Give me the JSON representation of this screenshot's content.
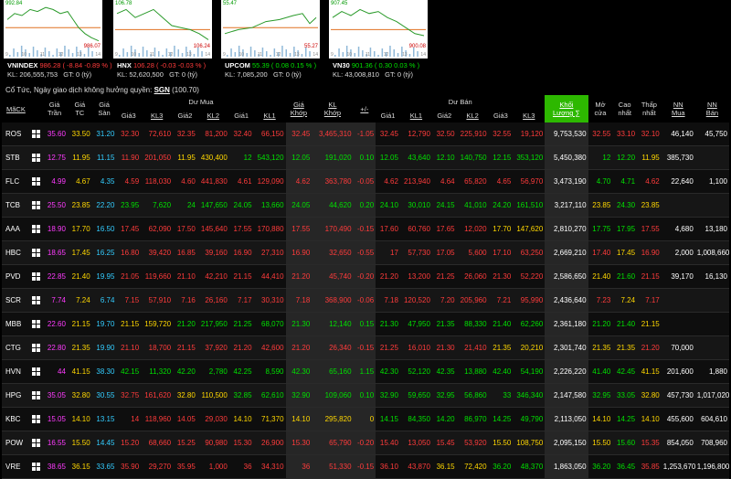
{
  "indices": [
    {
      "name": "VNINDEX",
      "value": "986.28",
      "change": "-8.84",
      "pct": "-0.89 %",
      "kl": "KL: 206,555,753",
      "gt": "GT: 0 (tỷ)",
      "top": "992.84",
      "bottom": "986.07",
      "dir": "dn",
      "pts": [
        [
          0,
          0.35
        ],
        [
          0.08,
          0.2
        ],
        [
          0.16,
          0.25
        ],
        [
          0.25,
          0.1
        ],
        [
          0.33,
          0.15
        ],
        [
          0.42,
          0.05
        ],
        [
          0.5,
          0.1
        ],
        [
          0.58,
          0.2
        ],
        [
          0.66,
          0.15
        ],
        [
          0.72,
          0.35
        ],
        [
          0.78,
          0.55
        ],
        [
          0.85,
          0.7
        ],
        [
          0.92,
          0.8
        ],
        [
          1,
          0.88
        ]
      ],
      "ref": 0.55
    },
    {
      "name": "HNX",
      "value": "106.28",
      "change": "-0.03",
      "pct": "-0.03 %",
      "kl": "KL: 52,620,500",
      "gt": "GT: 0 (tỷ)",
      "top": "106.78",
      "bottom": "106.24",
      "dir": "dn",
      "pts": [
        [
          0,
          0.2
        ],
        [
          0.1,
          0.1
        ],
        [
          0.2,
          0.3
        ],
        [
          0.3,
          0.2
        ],
        [
          0.4,
          0.1
        ],
        [
          0.5,
          0.3
        ],
        [
          0.6,
          0.5
        ],
        [
          0.7,
          0.55
        ],
        [
          0.8,
          0.6
        ],
        [
          0.9,
          0.7
        ],
        [
          1,
          0.85
        ]
      ],
      "ref": 0.6
    },
    {
      "name": "UPCOM",
      "value": "55.39",
      "change": "0.08",
      "pct": "0.15 %",
      "kl": "KL: 7,085,200",
      "gt": "GT: 0 (tỷ)",
      "top": "55.47",
      "bottom": "55.27",
      "dir": "up",
      "pts": [
        [
          0,
          0.7
        ],
        [
          0.15,
          0.6
        ],
        [
          0.3,
          0.55
        ],
        [
          0.45,
          0.4
        ],
        [
          0.6,
          0.35
        ],
        [
          0.75,
          0.25
        ],
        [
          0.85,
          0.2
        ],
        [
          0.93,
          0.45
        ],
        [
          1,
          0.3
        ]
      ],
      "ref": 0.55
    },
    {
      "name": "VN30",
      "value": "901.36",
      "change": "0.30",
      "pct": "0.03 %",
      "kl": "KL: 43,008,810",
      "gt": "GT: 0 (tỷ)",
      "top": "907.45",
      "bottom": "900.08",
      "dir": "up",
      "pts": [
        [
          0,
          0.3
        ],
        [
          0.1,
          0.15
        ],
        [
          0.2,
          0.25
        ],
        [
          0.3,
          0.1
        ],
        [
          0.4,
          0.2
        ],
        [
          0.5,
          0.15
        ],
        [
          0.6,
          0.3
        ],
        [
          0.7,
          0.4
        ],
        [
          0.8,
          0.55
        ],
        [
          0.9,
          0.7
        ],
        [
          1,
          0.75
        ]
      ],
      "ref": 0.6
    }
  ],
  "chart_axis": [
    "9",
    "10",
    "11",
    "12",
    "13",
    "14"
  ],
  "note": {
    "prefix": "Cổ Tức, Ngày giao dịch không hưởng quyền: ",
    "sym": "SGN",
    "val": " (100.70)"
  },
  "headers": {
    "group_buy": "Dư Mua",
    "group_sell": "Dư Bán",
    "cols": [
      "MãCK",
      "",
      "Giá Trần",
      "Giá TC",
      "Giá Sàn",
      "Giá3",
      "KL3",
      "Giá2",
      "KL2",
      "Giá1",
      "KL1",
      "Giá Khớp",
      "KL Khớp",
      "+/-",
      "Giá1",
      "KL1",
      "Giá2",
      "KL2",
      "Giá3",
      "KL3",
      "Khối Lượng ∑",
      "Mở cửa",
      "Cao nhất",
      "Thấp nhất",
      "NN Mua",
      "NN Bán"
    ]
  },
  "rows": [
    {
      "sym": "ROS",
      "v": [
        "35.60",
        "33.50",
        "31.20",
        "32.30",
        "72,610",
        "32.35",
        "81,200",
        "32.40",
        "66,150",
        "32.45",
        "3,465,310",
        "-1.05",
        "32.45",
        "12,790",
        "32.50",
        "225,910",
        "32.55",
        "19,120",
        "9,753,530",
        "32.55",
        "33.10",
        "32.10",
        "46,140",
        "45,750"
      ],
      "c": [
        "ce",
        "ref",
        "fl",
        "dn",
        "dn",
        "dn",
        "dn",
        "dn",
        "dn",
        "dn",
        "dn",
        "dn",
        "dn",
        "dn",
        "dn",
        "dn",
        "dn",
        "dn",
        "w",
        "dn",
        "dn",
        "dn",
        "w",
        "w"
      ]
    },
    {
      "sym": "STB",
      "v": [
        "12.75",
        "11.95",
        "11.15",
        "11.90",
        "201,050",
        "11.95",
        "430,400",
        "12",
        "543,120",
        "12.05",
        "191,020",
        "0.10",
        "12.05",
        "43,640",
        "12.10",
        "140,750",
        "12.15",
        "353,120",
        "5,450,380",
        "12",
        "12.20",
        "11.95",
        "385,730",
        ""
      ],
      "c": [
        "ce",
        "ref",
        "fl",
        "dn",
        "dn",
        "ref",
        "ref",
        "up",
        "up",
        "up",
        "up",
        "up",
        "up",
        "up",
        "up",
        "up",
        "up",
        "up",
        "w",
        "up",
        "up",
        "ref",
        "w",
        "w"
      ]
    },
    {
      "sym": "FLC",
      "v": [
        "4.99",
        "4.67",
        "4.35",
        "4.59",
        "118,030",
        "4.60",
        "441,830",
        "4.61",
        "129,090",
        "4.62",
        "363,780",
        "-0.05",
        "4.62",
        "213,940",
        "4.64",
        "65,820",
        "4.65",
        "56,970",
        "3,473,190",
        "4.70",
        "4.71",
        "4.62",
        "22,640",
        "1,100"
      ],
      "c": [
        "ce",
        "ref",
        "fl",
        "dn",
        "dn",
        "dn",
        "dn",
        "dn",
        "dn",
        "dn",
        "dn",
        "dn",
        "dn",
        "dn",
        "dn",
        "dn",
        "dn",
        "dn",
        "w",
        "up",
        "up",
        "dn",
        "w",
        "w"
      ]
    },
    {
      "sym": "TCB",
      "v": [
        "25.50",
        "23.85",
        "22.20",
        "23.95",
        "7,620",
        "24",
        "147,650",
        "24.05",
        "13,660",
        "24.05",
        "44,620",
        "0.20",
        "24.10",
        "30,010",
        "24.15",
        "41,010",
        "24.20",
        "161,510",
        "3,217,110",
        "23.85",
        "24.30",
        "23.85",
        "",
        ""
      ],
      "c": [
        "ce",
        "ref",
        "fl",
        "up",
        "up",
        "up",
        "up",
        "up",
        "up",
        "up",
        "up",
        "up",
        "up",
        "up",
        "up",
        "up",
        "up",
        "up",
        "w",
        "ref",
        "up",
        "ref",
        "w",
        "w"
      ]
    },
    {
      "sym": "AAA",
      "v": [
        "18.90",
        "17.70",
        "16.50",
        "17.45",
        "62,090",
        "17.50",
        "145,640",
        "17.55",
        "170,880",
        "17.55",
        "170,490",
        "-0.15",
        "17.60",
        "60,760",
        "17.65",
        "12,020",
        "17.70",
        "147,620",
        "2,810,270",
        "17.75",
        "17.95",
        "17.55",
        "4,680",
        "13,180"
      ],
      "c": [
        "ce",
        "ref",
        "fl",
        "dn",
        "dn",
        "dn",
        "dn",
        "dn",
        "dn",
        "dn",
        "dn",
        "dn",
        "dn",
        "dn",
        "dn",
        "dn",
        "ref",
        "ref",
        "w",
        "up",
        "up",
        "dn",
        "w",
        "w"
      ]
    },
    {
      "sym": "HBC",
      "v": [
        "18.65",
        "17.45",
        "16.25",
        "16.80",
        "39,420",
        "16.85",
        "39,160",
        "16.90",
        "27,310",
        "16.90",
        "32,650",
        "-0.55",
        "17",
        "57,730",
        "17.05",
        "5,600",
        "17.10",
        "63,250",
        "2,669,210",
        "17.40",
        "17.45",
        "16.90",
        "2,000",
        "1,008,660"
      ],
      "c": [
        "ce",
        "ref",
        "fl",
        "dn",
        "dn",
        "dn",
        "dn",
        "dn",
        "dn",
        "dn",
        "dn",
        "dn",
        "dn",
        "dn",
        "dn",
        "dn",
        "dn",
        "dn",
        "w",
        "dn",
        "ref",
        "dn",
        "w",
        "w"
      ]
    },
    {
      "sym": "PVD",
      "v": [
        "22.85",
        "21.40",
        "19.95",
        "21.05",
        "119,660",
        "21.10",
        "42,210",
        "21.15",
        "44,410",
        "21.20",
        "45,740",
        "-0.20",
        "21.20",
        "13,200",
        "21.25",
        "26,060",
        "21.30",
        "52,220",
        "2,586,650",
        "21.40",
        "21.60",
        "21.15",
        "39,170",
        "16,130"
      ],
      "c": [
        "ce",
        "ref",
        "fl",
        "dn",
        "dn",
        "dn",
        "dn",
        "dn",
        "dn",
        "dn",
        "dn",
        "dn",
        "dn",
        "dn",
        "dn",
        "dn",
        "dn",
        "dn",
        "w",
        "ref",
        "up",
        "dn",
        "w",
        "w"
      ]
    },
    {
      "sym": "SCR",
      "v": [
        "7.74",
        "7.24",
        "6.74",
        "7.15",
        "57,910",
        "7.16",
        "26,160",
        "7.17",
        "30,310",
        "7.18",
        "368,900",
        "-0.06",
        "7.18",
        "120,520",
        "7.20",
        "205,960",
        "7.21",
        "95,990",
        "2,436,640",
        "7.23",
        "7.24",
        "7.17",
        "",
        ""
      ],
      "c": [
        "ce",
        "ref",
        "fl",
        "dn",
        "dn",
        "dn",
        "dn",
        "dn",
        "dn",
        "dn",
        "dn",
        "dn",
        "dn",
        "dn",
        "dn",
        "dn",
        "dn",
        "dn",
        "w",
        "dn",
        "ref",
        "dn",
        "w",
        "w"
      ]
    },
    {
      "sym": "MBB",
      "v": [
        "22.60",
        "21.15",
        "19.70",
        "21.15",
        "159,720",
        "21.20",
        "217,950",
        "21.25",
        "68,070",
        "21.30",
        "12,140",
        "0.15",
        "21.30",
        "47,950",
        "21.35",
        "88,330",
        "21.40",
        "62,260",
        "2,361,180",
        "21.20",
        "21.40",
        "21.15",
        "",
        ""
      ],
      "c": [
        "ce",
        "ref",
        "fl",
        "ref",
        "ref",
        "up",
        "up",
        "up",
        "up",
        "up",
        "up",
        "up",
        "up",
        "up",
        "up",
        "up",
        "up",
        "up",
        "w",
        "up",
        "up",
        "ref",
        "w",
        "w"
      ]
    },
    {
      "sym": "CTG",
      "v": [
        "22.80",
        "21.35",
        "19.90",
        "21.10",
        "18,700",
        "21.15",
        "37,920",
        "21.20",
        "42,600",
        "21.20",
        "26,340",
        "-0.15",
        "21.25",
        "16,010",
        "21.30",
        "21,410",
        "21.35",
        "20,210",
        "2,301,740",
        "21.35",
        "21.35",
        "21.20",
        "70,000",
        ""
      ],
      "c": [
        "ce",
        "ref",
        "fl",
        "dn",
        "dn",
        "dn",
        "dn",
        "dn",
        "dn",
        "dn",
        "dn",
        "dn",
        "dn",
        "dn",
        "dn",
        "dn",
        "ref",
        "ref",
        "w",
        "ref",
        "ref",
        "dn",
        "w",
        "w"
      ]
    },
    {
      "sym": "HVN",
      "v": [
        "44",
        "41.15",
        "38.30",
        "42.15",
        "11,320",
        "42.20",
        "2,780",
        "42.25",
        "8,590",
        "42.30",
        "65,160",
        "1.15",
        "42.30",
        "52,120",
        "42.35",
        "13,880",
        "42.40",
        "54,190",
        "2,226,220",
        "41.40",
        "42.45",
        "41.15",
        "201,600",
        "1,880"
      ],
      "c": [
        "ce",
        "ref",
        "fl",
        "up",
        "up",
        "up",
        "up",
        "up",
        "up",
        "up",
        "up",
        "up",
        "up",
        "up",
        "up",
        "up",
        "up",
        "up",
        "w",
        "up",
        "up",
        "ref",
        "w",
        "w"
      ]
    },
    {
      "sym": "HPG",
      "v": [
        "35.05",
        "32.80",
        "30.55",
        "32.75",
        "161,620",
        "32.80",
        "110,500",
        "32.85",
        "62,610",
        "32.90",
        "109,060",
        "0.10",
        "32.90",
        "59,650",
        "32.95",
        "56,860",
        "33",
        "346,340",
        "2,147,580",
        "32.95",
        "33.05",
        "32.80",
        "457,730",
        "1,017,020"
      ],
      "c": [
        "ce",
        "ref",
        "fl",
        "dn",
        "dn",
        "ref",
        "ref",
        "up",
        "up",
        "up",
        "up",
        "up",
        "up",
        "up",
        "up",
        "up",
        "up",
        "up",
        "w",
        "up",
        "up",
        "ref",
        "w",
        "w"
      ]
    },
    {
      "sym": "KBC",
      "v": [
        "15.05",
        "14.10",
        "13.15",
        "14",
        "118,960",
        "14.05",
        "29,030",
        "14.10",
        "71,370",
        "14.10",
        "295,820",
        "0",
        "14.15",
        "84,350",
        "14.20",
        "86,970",
        "14.25",
        "49,790",
        "2,113,050",
        "14.10",
        "14.25",
        "14.10",
        "455,600",
        "604,610"
      ],
      "c": [
        "ce",
        "ref",
        "fl",
        "dn",
        "dn",
        "dn",
        "dn",
        "ref",
        "ref",
        "ref",
        "ref",
        "ref",
        "up",
        "up",
        "up",
        "up",
        "up",
        "up",
        "w",
        "ref",
        "up",
        "ref",
        "w",
        "w"
      ]
    },
    {
      "sym": "POW",
      "v": [
        "16.55",
        "15.50",
        "14.45",
        "15.20",
        "68,660",
        "15.25",
        "90,980",
        "15.30",
        "26,900",
        "15.30",
        "65,790",
        "-0.20",
        "15.40",
        "13,050",
        "15.45",
        "53,920",
        "15.50",
        "108,750",
        "2,095,150",
        "15.50",
        "15.60",
        "15.35",
        "854,050",
        "708,960"
      ],
      "c": [
        "ce",
        "ref",
        "fl",
        "dn",
        "dn",
        "dn",
        "dn",
        "dn",
        "dn",
        "dn",
        "dn",
        "dn",
        "dn",
        "dn",
        "dn",
        "dn",
        "ref",
        "ref",
        "w",
        "ref",
        "up",
        "dn",
        "w",
        "w"
      ]
    },
    {
      "sym": "VRE",
      "v": [
        "38.65",
        "36.15",
        "33.65",
        "35.90",
        "29,270",
        "35.95",
        "1,000",
        "36",
        "34,310",
        "36",
        "51,330",
        "-0.15",
        "36.10",
        "43,870",
        "36.15",
        "72,420",
        "36.20",
        "48,370",
        "1,863,050",
        "36.20",
        "36.45",
        "35.85",
        "1,253,670",
        "1,196,800"
      ],
      "c": [
        "ce",
        "ref",
        "fl",
        "dn",
        "dn",
        "dn",
        "dn",
        "dn",
        "dn",
        "dn",
        "dn",
        "dn",
        "dn",
        "dn",
        "ref",
        "ref",
        "up",
        "up",
        "w",
        "up",
        "up",
        "dn",
        "w",
        "w"
      ]
    }
  ]
}
